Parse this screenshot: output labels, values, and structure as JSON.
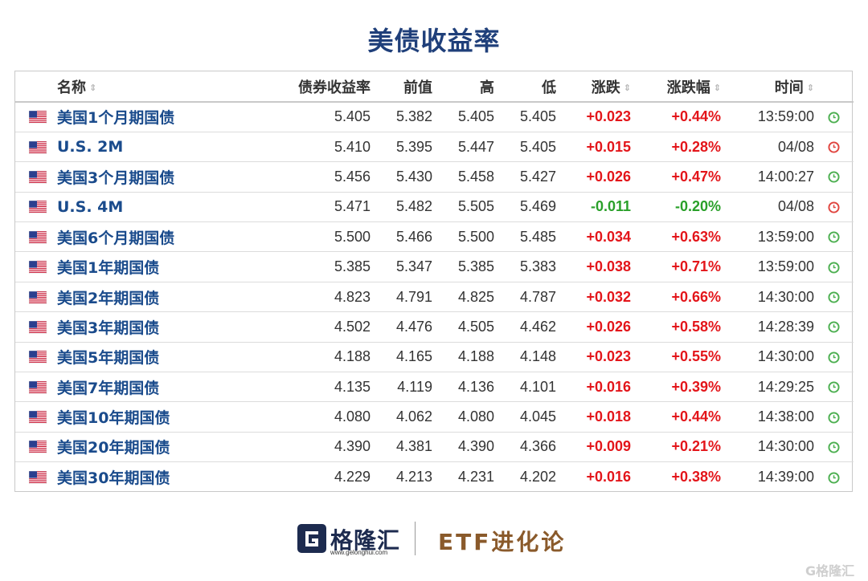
{
  "title": "美债收益率",
  "columns": {
    "name": "名称",
    "yield": "债券收益率",
    "prev": "前值",
    "high": "高",
    "low": "低",
    "change": "涨跌",
    "change_pct": "涨跌幅",
    "time": "时间"
  },
  "sort_icon": "⇕",
  "rows": [
    {
      "name": "美国1个月期国债",
      "yield": "5.405",
      "prev": "5.382",
      "high": "5.405",
      "low": "5.405",
      "change": "+0.023",
      "change_pct": "+0.44%",
      "time": "13:59:00",
      "dir": "up",
      "clock": "green"
    },
    {
      "name": "U.S. 2M",
      "yield": "5.410",
      "prev": "5.395",
      "high": "5.447",
      "low": "5.405",
      "change": "+0.015",
      "change_pct": "+0.28%",
      "time": "04/08",
      "dir": "up",
      "clock": "red"
    },
    {
      "name": "美国3个月期国债",
      "yield": "5.456",
      "prev": "5.430",
      "high": "5.458",
      "low": "5.427",
      "change": "+0.026",
      "change_pct": "+0.47%",
      "time": "14:00:27",
      "dir": "up",
      "clock": "green"
    },
    {
      "name": "U.S. 4M",
      "yield": "5.471",
      "prev": "5.482",
      "high": "5.505",
      "low": "5.469",
      "change": "-0.011",
      "change_pct": "-0.20%",
      "time": "04/08",
      "dir": "down",
      "clock": "red"
    },
    {
      "name": "美国6个月期国债",
      "yield": "5.500",
      "prev": "5.466",
      "high": "5.500",
      "low": "5.485",
      "change": "+0.034",
      "change_pct": "+0.63%",
      "time": "13:59:00",
      "dir": "up",
      "clock": "green"
    },
    {
      "name": "美国1年期国债",
      "yield": "5.385",
      "prev": "5.347",
      "high": "5.385",
      "low": "5.383",
      "change": "+0.038",
      "change_pct": "+0.71%",
      "time": "13:59:00",
      "dir": "up",
      "clock": "green"
    },
    {
      "name": "美国2年期国债",
      "yield": "4.823",
      "prev": "4.791",
      "high": "4.825",
      "low": "4.787",
      "change": "+0.032",
      "change_pct": "+0.66%",
      "time": "14:30:00",
      "dir": "up",
      "clock": "green"
    },
    {
      "name": "美国3年期国债",
      "yield": "4.502",
      "prev": "4.476",
      "high": "4.505",
      "low": "4.462",
      "change": "+0.026",
      "change_pct": "+0.58%",
      "time": "14:28:39",
      "dir": "up",
      "clock": "green"
    },
    {
      "name": "美国5年期国债",
      "yield": "4.188",
      "prev": "4.165",
      "high": "4.188",
      "low": "4.148",
      "change": "+0.023",
      "change_pct": "+0.55%",
      "time": "14:30:00",
      "dir": "up",
      "clock": "green"
    },
    {
      "name": "美国7年期国债",
      "yield": "4.135",
      "prev": "4.119",
      "high": "4.136",
      "low": "4.101",
      "change": "+0.016",
      "change_pct": "+0.39%",
      "time": "14:29:25",
      "dir": "up",
      "clock": "green"
    },
    {
      "name": "美国10年期国债",
      "yield": "4.080",
      "prev": "4.062",
      "high": "4.080",
      "low": "4.045",
      "change": "+0.018",
      "change_pct": "+0.44%",
      "time": "14:38:00",
      "dir": "up",
      "clock": "green"
    },
    {
      "name": "美国20年期国债",
      "yield": "4.390",
      "prev": "4.381",
      "high": "4.390",
      "low": "4.366",
      "change": "+0.009",
      "change_pct": "+0.21%",
      "time": "14:30:00",
      "dir": "up",
      "clock": "green"
    },
    {
      "name": "美国30年期国债",
      "yield": "4.229",
      "prev": "4.213",
      "high": "4.231",
      "low": "4.202",
      "change": "+0.016",
      "change_pct": "+0.38%",
      "time": "14:39:00",
      "dir": "up",
      "clock": "green"
    }
  ],
  "colors": {
    "title": "#1f3f7a",
    "link": "#1a4b8c",
    "up": "#e3151a",
    "down": "#2aa02a",
    "clock_green": "#4caf50",
    "clock_red": "#e0443e"
  },
  "footer": {
    "brand": "格隆汇",
    "brand_url": "www.gelonghui.com",
    "column": "ETF进化论",
    "watermark": "G格隆汇"
  }
}
